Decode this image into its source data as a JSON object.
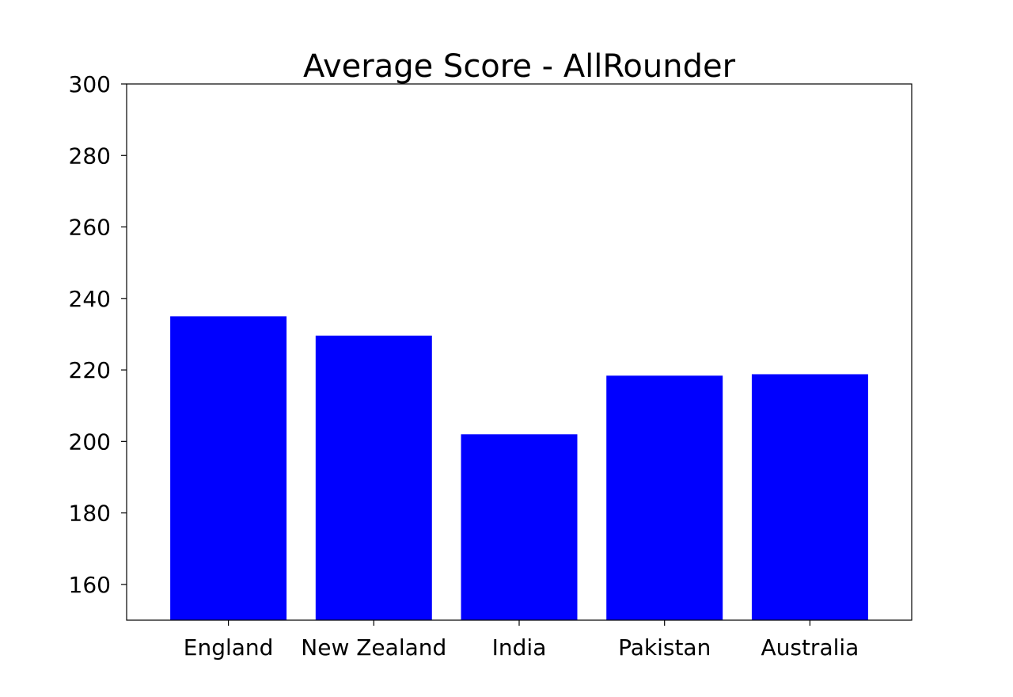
{
  "chart_data": {
    "type": "bar",
    "title": "Average Score - AllRounder",
    "xlabel": "",
    "ylabel": "",
    "categories": [
      "England",
      "New Zealand",
      "India",
      "Pakistan",
      "Australia"
    ],
    "values": [
      235,
      229.6,
      202,
      218.4,
      218.8
    ],
    "ylim": [
      150,
      300
    ],
    "yticks": [
      "160",
      "180",
      "200",
      "220",
      "240",
      "260",
      "280",
      "300"
    ],
    "grid": false,
    "legend": "none",
    "bar_color": "#0000ff"
  }
}
